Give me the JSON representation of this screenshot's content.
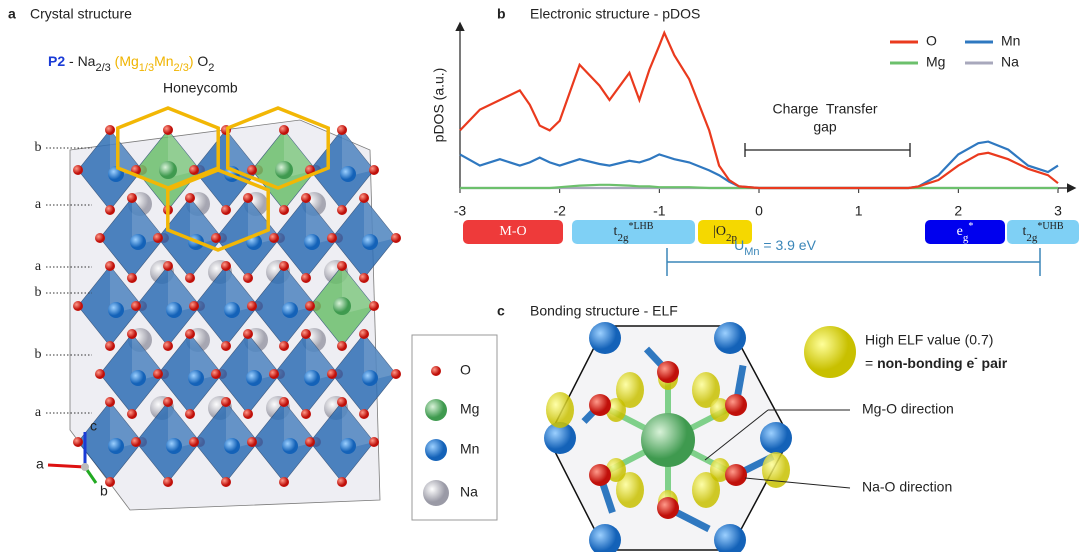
{
  "panel_a": {
    "label": "a",
    "title": "Crystal structure",
    "formula": [
      "P2",
      " - Na",
      "2/3",
      " (Mg",
      "1/3",
      "Mn",
      "2/3",
      ")",
      " O",
      "2"
    ],
    "honeycomb": "Honeycomb",
    "layer_labels": [
      "b",
      "a",
      "a",
      "b",
      "b",
      "a"
    ],
    "axes": [
      "c",
      "a",
      "b"
    ]
  },
  "legend": [
    "O",
    "Mg",
    "Mn",
    "Na"
  ],
  "chart_data": {
    "type": "line",
    "label": "b",
    "title": "Electronic structure - pDOS",
    "y_label": "pDOS (a.u.)",
    "annotation": [
      "Charge  Transfer",
      "gap"
    ],
    "bands": [
      [
        "M-O"
      ],
      [
        "t",
        "2g",
        "*LHB"
      ],
      [
        "|O",
        "2p"
      ],
      [
        "e",
        "g",
        "*"
      ],
      [
        "t",
        "2g",
        "*UHB"
      ]
    ],
    "u_label": [
      "U",
      "Mn",
      " = 3.9 eV"
    ],
    "x": [
      -3,
      -2.8,
      -2.6,
      -2.4,
      -2.3,
      -2.2,
      -2.1,
      -2.0,
      -1.8,
      -1.6,
      -1.5,
      -1.3,
      -1.2,
      -1.1,
      -1.0,
      -0.95,
      -0.85,
      -0.7,
      -0.5,
      -0.4,
      -0.3,
      -0.2,
      0,
      0.5,
      1.0,
      1.5,
      1.6,
      1.8,
      2.0,
      2.2,
      2.3,
      2.5,
      2.7,
      2.9,
      3.0
    ],
    "series": [
      {
        "name": "O",
        "color": "#ea3a1e",
        "values": [
          3.6,
          4.9,
          5.5,
          6.1,
          5.2,
          3.9,
          3.6,
          4.2,
          7.7,
          6.4,
          5.5,
          7.2,
          5.5,
          7.4,
          8.9,
          9.7,
          8.3,
          6.8,
          3.6,
          1.4,
          0.5,
          0.1,
          0,
          0,
          0,
          0,
          0.1,
          0.5,
          1.4,
          2.1,
          2.2,
          1.8,
          1.2,
          0.8,
          0.3
        ]
      },
      {
        "name": "Mn",
        "color": "#2f78c0",
        "values": [
          2.1,
          1.4,
          1.8,
          1.4,
          1.6,
          1.9,
          1.6,
          1.4,
          1.8,
          1.5,
          1.4,
          1.7,
          1.6,
          1.8,
          2.1,
          2.0,
          1.8,
          1.6,
          1.1,
          0.8,
          0.4,
          0.1,
          0,
          0,
          0,
          0,
          0.1,
          0.8,
          2.1,
          2.8,
          2.9,
          2.4,
          1.4,
          1.0,
          1.4
        ]
      },
      {
        "name": "Mg",
        "color": "#6cc06c",
        "values": [
          0,
          0,
          0,
          0,
          0,
          0,
          0,
          0.05,
          0.15,
          0.2,
          0.2,
          0.15,
          0.1,
          0.1,
          0.05,
          0.05,
          0.05,
          0.05,
          0,
          0,
          0,
          0,
          0,
          0,
          0,
          0,
          0,
          0,
          0,
          0,
          0,
          0,
          0,
          0,
          0
        ]
      },
      {
        "name": "Na",
        "color": "#a8a8bc",
        "values": [
          0,
          0,
          0,
          0,
          0,
          0,
          0,
          0,
          0,
          0,
          0,
          0,
          0,
          0,
          0,
          0,
          0,
          0,
          0,
          0,
          0,
          0,
          0,
          0,
          0,
          0,
          0,
          0,
          0,
          0,
          0,
          0,
          0,
          0,
          0
        ]
      }
    ],
    "xlim": [
      -3,
      3
    ],
    "xticks": [
      -3,
      -2,
      -1,
      0,
      1,
      2,
      3
    ],
    "ylim": [
      0,
      10
    ]
  },
  "panel_c": {
    "label": "c",
    "title": "Bonding structure - ELF",
    "elf_legend": [
      "High ELF value (0.7)",
      "= ",
      "non-bonding e",
      "-",
      " pair"
    ],
    "mg_o": "Mg-O direction",
    "na_o": "Na-O direction"
  }
}
